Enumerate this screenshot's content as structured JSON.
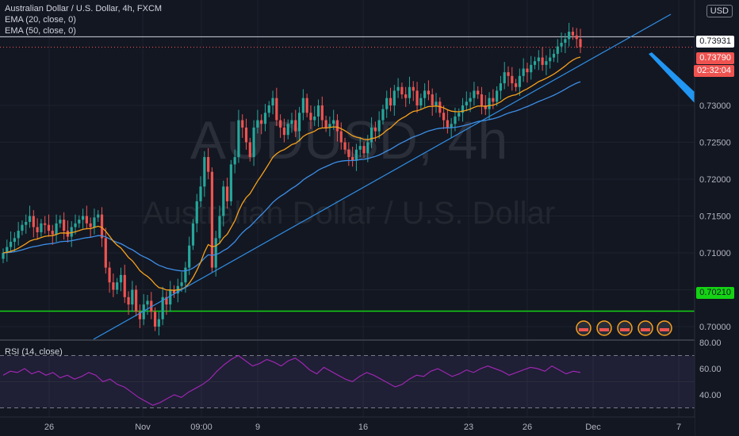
{
  "legend": {
    "title": "Australian Dollar / U.S. Dollar, 4h, FXCM",
    "ema20": "EMA (20, close, 0)",
    "ema50": "EMA (50, close, 0)",
    "rsi": "RSI (14, close)"
  },
  "watermark": {
    "symbol": "AUDUSD, 4h",
    "name": "Australian Dollar / U.S. Dollar"
  },
  "currency": "USD",
  "tags": {
    "resistance": "0.73931",
    "last": "0.73790",
    "countdown": "02:32:04",
    "support": "0.70210"
  },
  "colors": {
    "up": "#26a69a",
    "down": "#ef5350",
    "ema20": "#f7a11b",
    "ema50": "#3d8ee6",
    "trend": "#2f8fe6",
    "support": "#14d314",
    "rsi": "#9c27b0"
  },
  "chart_data": {
    "type": "candlestick",
    "y_ticks": [
      "0.73000",
      "0.72500",
      "0.72000",
      "0.71500",
      "0.71000",
      "0.70500",
      "0.70000"
    ],
    "x_ticks": [
      "26",
      "Nov",
      "09:00",
      "9",
      "16",
      "23",
      "26",
      "Dec",
      "7"
    ],
    "rsi_ticks": [
      "80.00",
      "60.00",
      "40.00"
    ],
    "levels": {
      "resistance": 0.73931,
      "support": 0.7021,
      "last": 0.7379
    },
    "rsi_bands": [
      70,
      30
    ],
    "close": [
      0.71,
      0.7108,
      0.7115,
      0.712,
      0.713,
      0.7138,
      0.7142,
      0.715,
      0.7135,
      0.7128,
      0.714,
      0.7138,
      0.713,
      0.7125,
      0.714,
      0.7145,
      0.713,
      0.7122,
      0.7135,
      0.714,
      0.7145,
      0.715,
      0.714,
      0.7135,
      0.7148,
      0.7152,
      0.712,
      0.708,
      0.706,
      0.705,
      0.706,
      0.707,
      0.704,
      0.703,
      0.705,
      0.702,
      0.701,
      0.703,
      0.7035,
      0.702,
      0.7,
      0.701,
      0.704,
      0.703,
      0.705,
      0.7045,
      0.7055,
      0.706,
      0.708,
      0.711,
      0.714,
      0.717,
      0.719,
      0.723,
      0.721,
      0.708,
      0.712,
      0.715,
      0.719,
      0.717,
      0.722,
      0.723,
      0.728,
      0.727,
      0.725,
      0.723,
      0.727,
      0.728,
      0.7275,
      0.729,
      0.73,
      0.731,
      0.728,
      0.727,
      0.726,
      0.7275,
      0.728,
      0.7265,
      0.729,
      0.731,
      0.729,
      0.728,
      0.7285,
      0.73,
      0.728,
      0.727,
      0.7275,
      0.728,
      0.7265,
      0.725,
      0.724,
      0.723,
      0.7225,
      0.724,
      0.7245,
      0.7235,
      0.725,
      0.727,
      0.7265,
      0.728,
      0.7295,
      0.731,
      0.73,
      0.732,
      0.7325,
      0.7315,
      0.731,
      0.7325,
      0.732,
      0.73,
      0.731,
      0.732,
      0.7315,
      0.73,
      0.7305,
      0.729,
      0.728,
      0.727,
      0.7275,
      0.7285,
      0.729,
      0.73,
      0.7305,
      0.731,
      0.732,
      0.7315,
      0.73,
      0.7295,
      0.731,
      0.7305,
      0.732,
      0.733,
      0.7345,
      0.734,
      0.733,
      0.7325,
      0.734,
      0.735,
      0.7345,
      0.7355,
      0.736,
      0.7365,
      0.7355,
      0.736,
      0.7365,
      0.737,
      0.738,
      0.7385,
      0.739,
      0.74,
      0.7395,
      0.739,
      0.7379
    ],
    "rsi": [
      55,
      58,
      57,
      60,
      56,
      58,
      55,
      57,
      53,
      55,
      52,
      54,
      57,
      55,
      50,
      52,
      48,
      46,
      42,
      38,
      35,
      32,
      34,
      37,
      40,
      38,
      42,
      45,
      48,
      52,
      58,
      63,
      67,
      70,
      66,
      62,
      64,
      67,
      65,
      62,
      66,
      68,
      64,
      59,
      56,
      61,
      58,
      55,
      52,
      50,
      54,
      57,
      55,
      52,
      49,
      46,
      48,
      52,
      55,
      54,
      58,
      60,
      57,
      54,
      56,
      59,
      57,
      60,
      62,
      60,
      58,
      55,
      57,
      59,
      61,
      60,
      58,
      62,
      59,
      56,
      58,
      57
    ],
    "ema20_end": 0.7367,
    "ema50_end": 0.734
  }
}
